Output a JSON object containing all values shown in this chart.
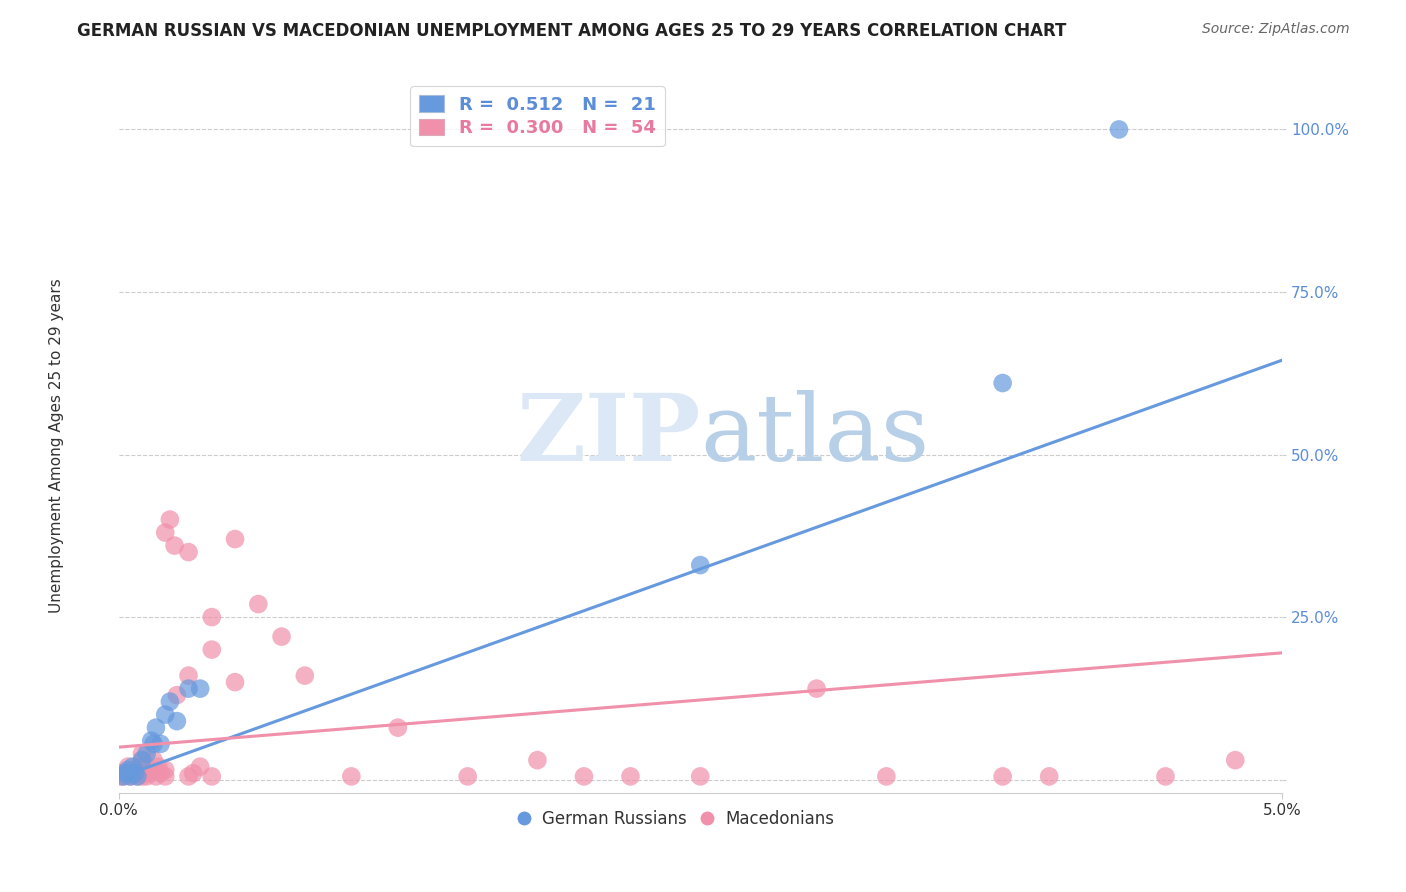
{
  "title": "GERMAN RUSSIAN VS MACEDONIAN UNEMPLOYMENT AMONG AGES 25 TO 29 YEARS CORRELATION CHART",
  "source": "Source: ZipAtlas.com",
  "ylabel": "Unemployment Among Ages 25 to 29 years",
  "y_ticks_labels": [
    "100.0%",
    "75.0%",
    "50.0%",
    "25.0%",
    ""
  ],
  "y_tick_vals": [
    1.0,
    0.75,
    0.5,
    0.25,
    0.0
  ],
  "xlim": [
    0.0,
    0.05
  ],
  "ylim": [
    -0.02,
    1.08
  ],
  "legend_entries": [
    {
      "label": "R =  0.512   N =  21",
      "color": "#5b8dd9"
    },
    {
      "label": "R =  0.300   N =  54",
      "color": "#e87a9f"
    }
  ],
  "legend_group_labels": [
    "German Russians",
    "Macedonians"
  ],
  "blue_color": "#6699dd",
  "pink_color": "#f090aa",
  "blue_scatter": [
    [
      0.0002,
      0.005
    ],
    [
      0.0003,
      0.01
    ],
    [
      0.0004,
      0.015
    ],
    [
      0.0005,
      0.005
    ],
    [
      0.0006,
      0.02
    ],
    [
      0.0007,
      0.01
    ],
    [
      0.0008,
      0.005
    ],
    [
      0.001,
      0.03
    ],
    [
      0.0012,
      0.04
    ],
    [
      0.0014,
      0.06
    ],
    [
      0.0015,
      0.055
    ],
    [
      0.0016,
      0.08
    ],
    [
      0.0018,
      0.055
    ],
    [
      0.002,
      0.1
    ],
    [
      0.0022,
      0.12
    ],
    [
      0.0025,
      0.09
    ],
    [
      0.003,
      0.14
    ],
    [
      0.0035,
      0.14
    ],
    [
      0.025,
      0.33
    ],
    [
      0.038,
      0.61
    ],
    [
      0.043,
      1.0
    ]
  ],
  "pink_scatter": [
    [
      5e-05,
      0.005
    ],
    [
      0.0001,
      0.01
    ],
    [
      0.0002,
      0.005
    ],
    [
      0.0003,
      0.01
    ],
    [
      0.0004,
      0.02
    ],
    [
      0.0005,
      0.005
    ],
    [
      0.0006,
      0.01
    ],
    [
      0.0007,
      0.015
    ],
    [
      0.0008,
      0.005
    ],
    [
      0.0009,
      0.01
    ],
    [
      0.001,
      0.005
    ],
    [
      0.001,
      0.01
    ],
    [
      0.001,
      0.02
    ],
    [
      0.001,
      0.03
    ],
    [
      0.001,
      0.04
    ],
    [
      0.0012,
      0.005
    ],
    [
      0.0013,
      0.01
    ],
    [
      0.0014,
      0.015
    ],
    [
      0.0015,
      0.03
    ],
    [
      0.0016,
      0.005
    ],
    [
      0.0017,
      0.02
    ],
    [
      0.0018,
      0.01
    ],
    [
      0.002,
      0.005
    ],
    [
      0.002,
      0.015
    ],
    [
      0.002,
      0.38
    ],
    [
      0.0022,
      0.4
    ],
    [
      0.0024,
      0.36
    ],
    [
      0.0025,
      0.13
    ],
    [
      0.003,
      0.16
    ],
    [
      0.003,
      0.35
    ],
    [
      0.003,
      0.005
    ],
    [
      0.0032,
      0.01
    ],
    [
      0.0035,
      0.02
    ],
    [
      0.004,
      0.25
    ],
    [
      0.004,
      0.005
    ],
    [
      0.004,
      0.2
    ],
    [
      0.005,
      0.15
    ],
    [
      0.005,
      0.37
    ],
    [
      0.006,
      0.27
    ],
    [
      0.007,
      0.22
    ],
    [
      0.008,
      0.16
    ],
    [
      0.01,
      0.005
    ],
    [
      0.012,
      0.08
    ],
    [
      0.015,
      0.005
    ],
    [
      0.018,
      0.03
    ],
    [
      0.02,
      0.005
    ],
    [
      0.022,
      0.005
    ],
    [
      0.025,
      0.005
    ],
    [
      0.03,
      0.14
    ],
    [
      0.033,
      0.005
    ],
    [
      0.038,
      0.005
    ],
    [
      0.04,
      0.005
    ],
    [
      0.045,
      0.005
    ],
    [
      0.048,
      0.03
    ]
  ],
  "blue_line_x": [
    0.0,
    0.05
  ],
  "blue_line_y": [
    0.003,
    0.645
  ],
  "pink_line_x": [
    0.0,
    0.05
  ],
  "pink_line_y": [
    0.05,
    0.195
  ],
  "background_color": "#ffffff",
  "grid_color": "#cccccc",
  "grid_linestyle": "--",
  "ytick_color": "#5b8dd9",
  "xtick_color": "#333333"
}
